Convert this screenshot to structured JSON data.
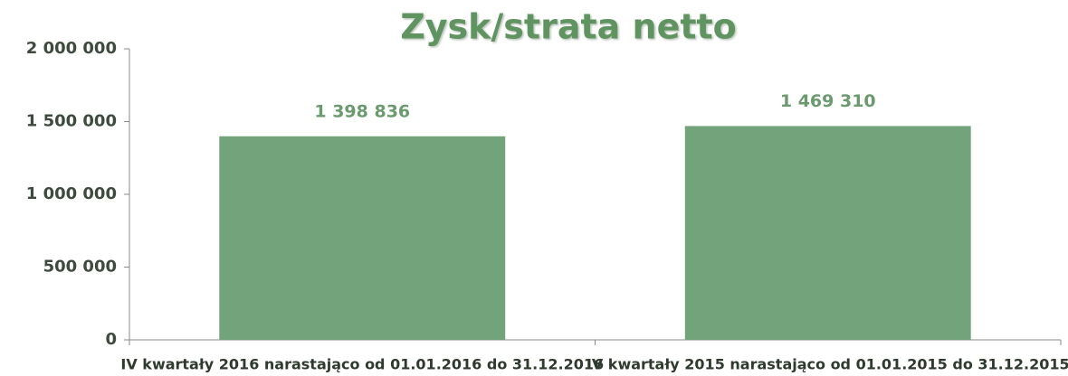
{
  "chart_data": {
    "type": "bar",
    "title": "Zysk/strata netto",
    "categories": [
      "IV kwartały 2016 narastająco od 01.01.2016 do 31.12.2016",
      "IV kwartały 2015 narastająco od 01.01.2015 do 31.12.2015"
    ],
    "values": [
      1398836,
      1469310
    ],
    "value_labels": [
      "1 398 836",
      "1 469 310"
    ],
    "color": "#72a37a",
    "ylim": [
      0,
      2000000
    ],
    "yticks": [
      0,
      {
        "value": 500000,
        "label": "500 000"
      },
      {
        "value": 1000000,
        "label": "1 000 000"
      },
      {
        "value": 1500000,
        "label": "1 500 000"
      },
      {
        "value": 2000000,
        "label": "2 000 000"
      }
    ],
    "grid": false
  }
}
